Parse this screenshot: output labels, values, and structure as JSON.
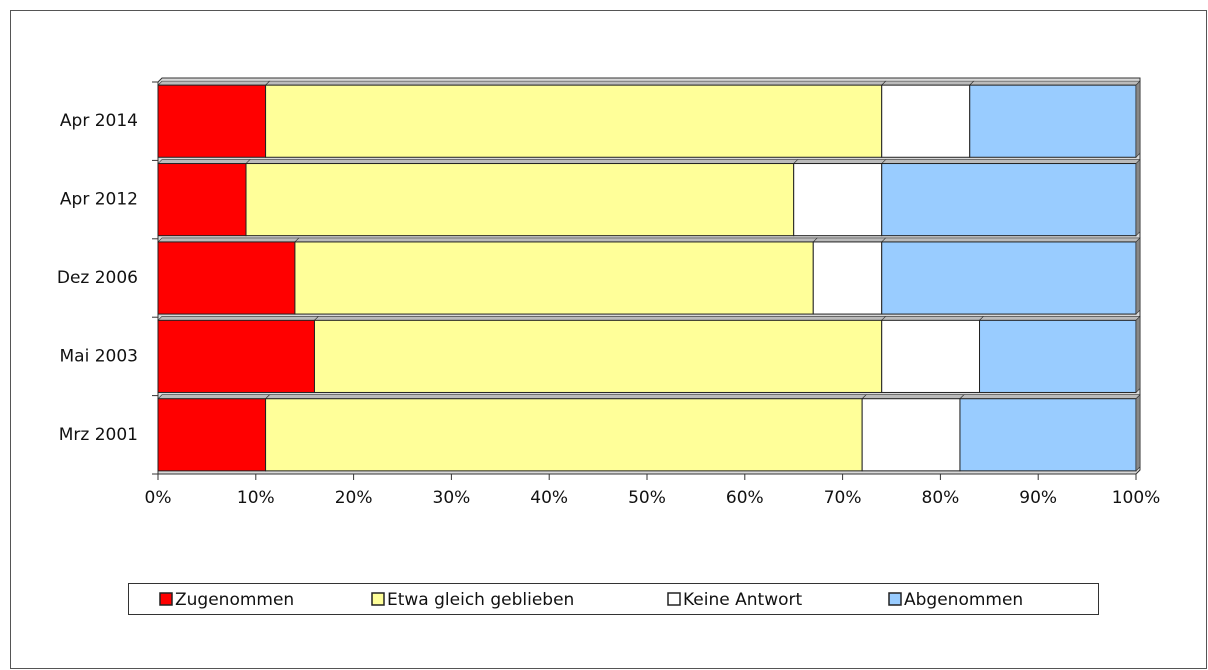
{
  "chart_data": {
    "type": "bar",
    "orientation": "horizontal",
    "stacked": true,
    "categories": [
      "Apr 2014",
      "Apr 2012",
      "Dez 2006",
      "Mai 2003",
      "Mrz 2001"
    ],
    "series": [
      {
        "name": "Zugenommen",
        "color": "#ff0000",
        "values": [
          11,
          9,
          14,
          16,
          11
        ]
      },
      {
        "name": "Etwa gleich geblieben",
        "color": "#ffff99",
        "values": [
          63,
          56,
          53,
          58,
          61
        ]
      },
      {
        "name": "Keine Antwort",
        "color": "#ffffff",
        "values": [
          9,
          9,
          7,
          10,
          10
        ]
      },
      {
        "name": "Abgenommen",
        "color": "#99ccff",
        "values": [
          17,
          26,
          26,
          16,
          18
        ]
      }
    ],
    "xlim": [
      0,
      100
    ],
    "xticks": [
      {
        "value": 0,
        "label": "0%"
      },
      {
        "value": 10,
        "label": "10%"
      },
      {
        "value": 20,
        "label": "20%"
      },
      {
        "value": 30,
        "label": "30%"
      },
      {
        "value": 40,
        "label": "40%"
      },
      {
        "value": 50,
        "label": "50%"
      },
      {
        "value": 60,
        "label": "60%"
      },
      {
        "value": 70,
        "label": "70%"
      },
      {
        "value": 80,
        "label": "80%"
      },
      {
        "value": 90,
        "label": "90%"
      },
      {
        "value": 100,
        "label": "100%"
      }
    ],
    "legend": "bottom"
  }
}
